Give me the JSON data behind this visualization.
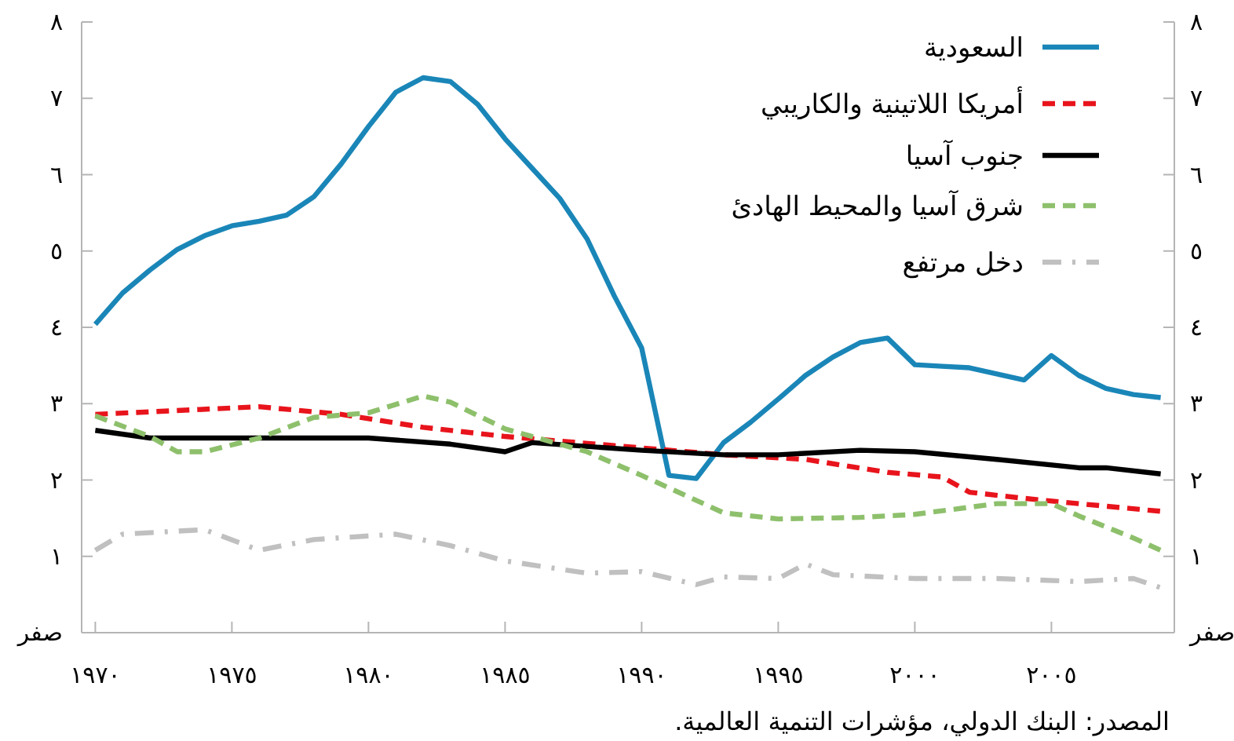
{
  "chart_data": {
    "type": "line",
    "legend": "top right",
    "annotations": [
      "المصدر: البنك الدولي، مؤشرات التنمية العالمية."
    ],
    "xlim": [
      1969.5,
      2009.5
    ],
    "xticks": [
      {
        "value": 1970,
        "label": "١٩٧٠"
      },
      {
        "value": 1975,
        "label": "١٩٧٥"
      },
      {
        "value": 1980,
        "label": "١٩٨٠"
      },
      {
        "value": 1985,
        "label": "١٩٨٥"
      },
      {
        "value": 1990,
        "label": "١٩٩٠"
      },
      {
        "value": 1995,
        "label": "١٩٩٥"
      },
      {
        "value": 2000,
        "label": "٢٠٠٠"
      },
      {
        "value": 2005,
        "label": "٢٠٠٥"
      }
    ],
    "ylim": [
      0,
      8
    ],
    "yticks": [
      {
        "value": 0,
        "label": "صفر"
      },
      {
        "value": 1,
        "label": "١"
      },
      {
        "value": 2,
        "label": "٢"
      },
      {
        "value": 3,
        "label": "٣"
      },
      {
        "value": 4,
        "label": "٤"
      },
      {
        "value": 5,
        "label": "٥"
      },
      {
        "value": 6,
        "label": "٦"
      },
      {
        "value": 7,
        "label": "٧"
      },
      {
        "value": 8,
        "label": "٨"
      }
    ],
    "y2lim": [
      0,
      8
    ],
    "y2ticks": [
      {
        "value": 0,
        "label": "صفر"
      },
      {
        "value": 1,
        "label": "١"
      },
      {
        "value": 2,
        "label": "٢"
      },
      {
        "value": 3,
        "label": "٣"
      },
      {
        "value": 4,
        "label": "٤"
      },
      {
        "value": 5,
        "label": "٥"
      },
      {
        "value": 6,
        "label": "٦"
      },
      {
        "value": 7,
        "label": "٧"
      },
      {
        "value": 8,
        "label": "٨"
      }
    ],
    "series": [
      {
        "name": "السعودية",
        "color": "#1a86b8",
        "line_style": "solid",
        "x": [
          1970,
          1971,
          1972,
          1973,
          1974,
          1975,
          1976,
          1977,
          1978,
          1979,
          1980,
          1981,
          1982,
          1983,
          1984,
          1985,
          1986,
          1987,
          1988,
          1989,
          1990,
          1991,
          1992,
          1993,
          1994,
          1995,
          1996,
          1997,
          1998,
          1999,
          2000,
          2001,
          2002,
          2003,
          2004,
          2005,
          2006,
          2007,
          2008,
          2009
        ],
        "values": [
          4.04,
          4.45,
          4.75,
          5.02,
          5.2,
          5.33,
          5.39,
          5.47,
          5.71,
          6.14,
          6.63,
          7.08,
          7.27,
          7.22,
          6.92,
          6.47,
          6.08,
          5.69,
          5.16,
          4.41,
          3.73,
          2.06,
          2.02,
          2.49,
          2.76,
          3.06,
          3.37,
          3.61,
          3.8,
          3.86,
          3.51,
          3.49,
          3.47,
          3.39,
          3.31,
          3.63,
          3.37,
          3.2,
          3.12,
          3.08
        ]
      },
      {
        "name": "أمريكا اللاتينية والكاريبي",
        "color": "#e8141c",
        "line_style": "dashed",
        "x": [
          1970,
          1976,
          1979,
          1982,
          1985,
          1989,
          1993,
          1996,
          1999,
          2001,
          2002,
          2004,
          2006,
          2009
        ],
        "values": [
          2.86,
          2.96,
          2.86,
          2.69,
          2.57,
          2.45,
          2.33,
          2.27,
          2.1,
          2.04,
          1.84,
          1.76,
          1.69,
          1.59
        ]
      },
      {
        "name": "جنوب آسيا",
        "color": "#000000",
        "line_style": "solid",
        "x": [
          1970,
          1972,
          1975,
          1980,
          1983,
          1985,
          1986,
          1990,
          1993,
          1995,
          1998,
          2000,
          2003,
          2006,
          2007,
          2009
        ],
        "values": [
          2.65,
          2.55,
          2.55,
          2.55,
          2.47,
          2.37,
          2.49,
          2.39,
          2.33,
          2.33,
          2.39,
          2.37,
          2.27,
          2.16,
          2.16,
          2.08
        ]
      },
      {
        "name": "شرق آسيا والمحيط الهادئ",
        "color": "#8ec06c",
        "line_style": "dashed",
        "x": [
          1970,
          1972,
          1973,
          1974,
          1976,
          1978,
          1980,
          1982,
          1983,
          1985,
          1988,
          1990,
          1993,
          1995,
          1998,
          2000,
          2003,
          2005,
          2006,
          2008,
          2009
        ],
        "values": [
          2.84,
          2.57,
          2.37,
          2.37,
          2.55,
          2.82,
          2.88,
          3.1,
          3.02,
          2.67,
          2.37,
          2.06,
          1.57,
          1.49,
          1.51,
          1.55,
          1.69,
          1.69,
          1.53,
          1.24,
          1.08
        ]
      },
      {
        "name": "دخل مرتفع",
        "color": "#c0c0c0",
        "line_style": "dashdot",
        "x": [
          1970,
          1971,
          1974,
          1976,
          1978,
          1981,
          1983,
          1985,
          1988,
          1990,
          1992,
          1993,
          1995,
          1996,
          1997,
          2000,
          2003,
          2006,
          2008,
          2009
        ],
        "values": [
          1.08,
          1.29,
          1.35,
          1.08,
          1.22,
          1.29,
          1.14,
          0.94,
          0.78,
          0.8,
          0.63,
          0.73,
          0.71,
          0.9,
          0.76,
          0.71,
          0.71,
          0.67,
          0.71,
          0.59
        ]
      }
    ]
  }
}
